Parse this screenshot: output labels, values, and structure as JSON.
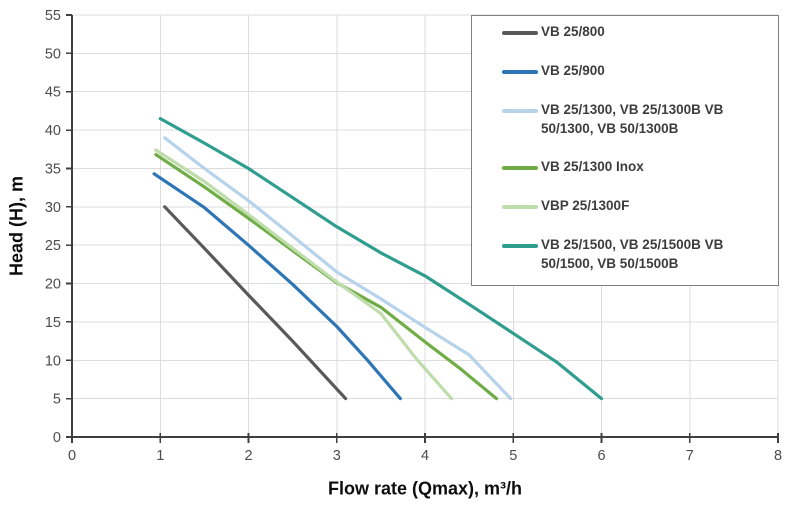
{
  "chart_data": {
    "type": "line",
    "title": "",
    "xlabel": "Flow rate (Qmax), m³/h",
    "ylabel": "Head (H), m",
    "xlim": [
      0,
      8
    ],
    "ylim": [
      0,
      55
    ],
    "xticks": [
      0,
      1,
      2,
      3,
      4,
      5,
      6,
      7,
      8
    ],
    "yticks": [
      0,
      5,
      10,
      15,
      20,
      25,
      30,
      35,
      40,
      45,
      50,
      55
    ],
    "grid": true,
    "legend_position": "top-right-inside",
    "colors": {
      "grid": "#dcdcdc",
      "axis": "#3f3f3f",
      "tick_label": "#4d4d4d",
      "legend_border": "#7f7f7f",
      "legend_text": "#3d3d3d",
      "background": "#ffffff"
    },
    "series": [
      {
        "name": "VB 25/800",
        "color": "#595959",
        "points": [
          [
            1.05,
            30
          ],
          [
            1.5,
            24.6
          ],
          [
            2,
            18.5
          ],
          [
            2.5,
            12.5
          ],
          [
            3.1,
            5
          ]
        ]
      },
      {
        "name": "VB 25/900",
        "color": "#2E75B6",
        "points": [
          [
            0.93,
            34.3
          ],
          [
            1.5,
            29.9
          ],
          [
            2,
            25
          ],
          [
            2.5,
            19.9
          ],
          [
            3,
            14.4
          ],
          [
            3.35,
            10
          ],
          [
            3.72,
            5
          ]
        ]
      },
      {
        "name": "VB 25/1300, VB 25/1300B  VB 50/1300, VB 50/1300B",
        "color": "#B7D3EB",
        "points": [
          [
            1.05,
            39
          ],
          [
            1.5,
            35
          ],
          [
            2,
            30.8
          ],
          [
            2.5,
            26.2
          ],
          [
            3,
            21.5
          ],
          [
            3.5,
            18
          ],
          [
            4,
            14.3
          ],
          [
            4.5,
            10.7
          ],
          [
            4.97,
            5
          ]
        ]
      },
      {
        "name": "VB 25/1300 Inox",
        "color": "#70AD47",
        "points": [
          [
            0.95,
            36.8
          ],
          [
            1.5,
            32.6
          ],
          [
            2,
            28.5
          ],
          [
            2.5,
            24.3
          ],
          [
            3,
            20.1
          ],
          [
            3.5,
            16.9
          ],
          [
            4,
            12.4
          ],
          [
            4.4,
            8.9
          ],
          [
            4.81,
            5
          ]
        ]
      },
      {
        "name": "VBP 25/1300F",
        "color": "#BFDCAB",
        "points": [
          [
            0.95,
            37.4
          ],
          [
            1.5,
            33.3
          ],
          [
            2,
            29
          ],
          [
            2.5,
            24.6
          ],
          [
            3,
            20.2
          ],
          [
            3.5,
            16.1
          ],
          [
            3.9,
            10.2
          ],
          [
            4.3,
            5
          ]
        ]
      },
      {
        "name": "VB 25/1500, VB 25/1500B VB 50/1500, VB 50/1500B",
        "color": "#2F9E8E",
        "points": [
          [
            1,
            41.5
          ],
          [
            1.5,
            38.3
          ],
          [
            2,
            35
          ],
          [
            2.5,
            31.2
          ],
          [
            3,
            27.4
          ],
          [
            3.5,
            24
          ],
          [
            4,
            21
          ],
          [
            4.5,
            17.3
          ],
          [
            5,
            13.5
          ],
          [
            5.5,
            9.7
          ],
          [
            6,
            5
          ]
        ]
      }
    ]
  }
}
